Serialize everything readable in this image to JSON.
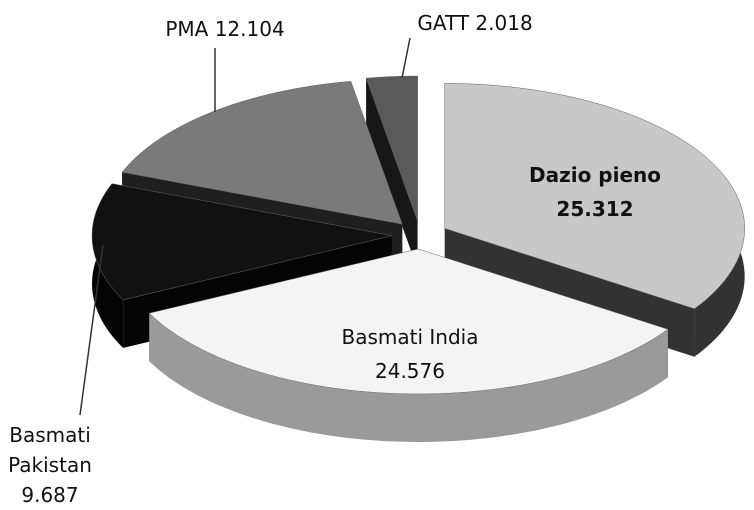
{
  "chart_data": {
    "type": "pie",
    "categories": [
      "Dazio pieno",
      "Basmati India",
      "Basmati Pakistan",
      "PMA",
      "GATT"
    ],
    "values": [
      25.312,
      24.576,
      9.687,
      12.104,
      2.018
    ],
    "colors": [
      "#c8c8c8",
      "#f4f4f4",
      "#111111",
      "#7a7a7a",
      "#5a5a5a"
    ]
  }
}
